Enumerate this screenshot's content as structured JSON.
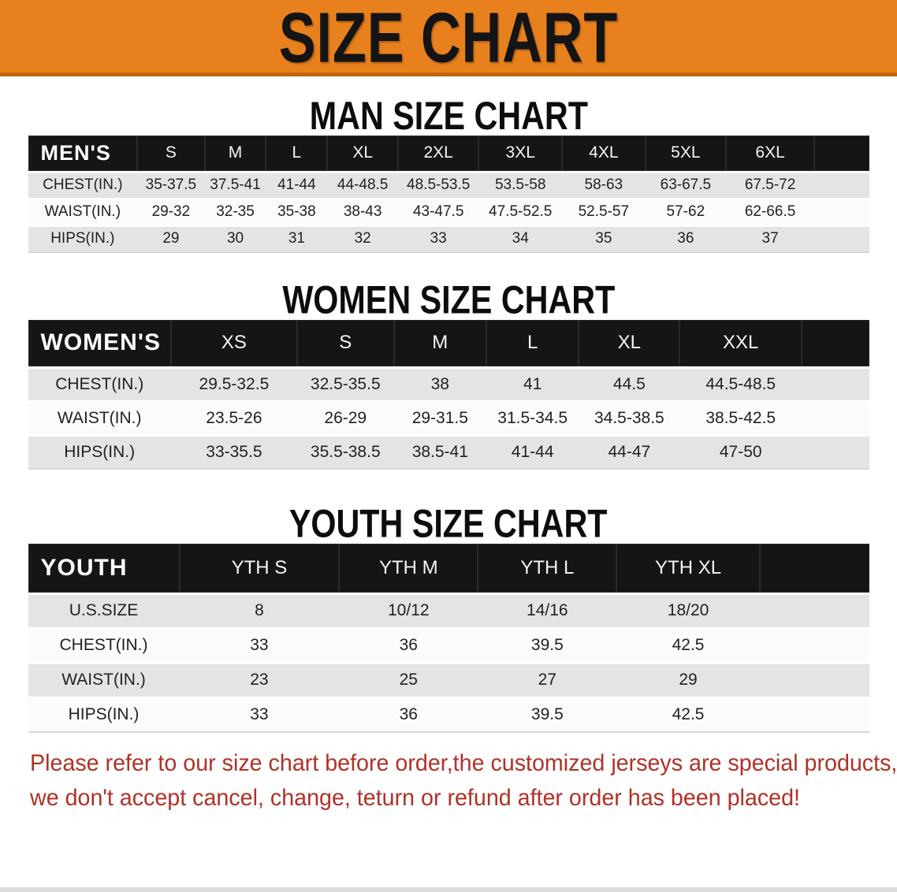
{
  "banner": {
    "title": "SIZE CHART"
  },
  "colors": {
    "banner_bg": "#E8811D",
    "banner_edge": "#C2660E",
    "header_bar": "#151515",
    "row_gray": "#E4E4E4",
    "row_white": "#FBFBFB",
    "disclaimer_red": "#B03126"
  },
  "sections": [
    {
      "heading": "MAN SIZE CHART",
      "header": [
        "MEN'S",
        "S",
        "M",
        "L",
        "XL",
        "2XL",
        "3XL",
        "4XL",
        "5XL",
        "6XL"
      ],
      "rows": [
        {
          "label": "CHEST(IN.)",
          "values": [
            "35-37.5",
            "37.5-41",
            "41-44",
            "44-48.5",
            "48.5-53.5",
            "53.5-58",
            "58-63",
            "63-67.5",
            "67.5-72"
          ]
        },
        {
          "label": "WAIST(IN.)",
          "values": [
            "29-32",
            "32-35",
            "35-38",
            "38-43",
            "43-47.5",
            "47.5-52.5",
            "52.5-57",
            "57-62",
            "62-66.5"
          ]
        },
        {
          "label": "HIPS(IN.)",
          "values": [
            "29",
            "30",
            "31",
            "32",
            "33",
            "34",
            "35",
            "36",
            "37"
          ]
        }
      ]
    },
    {
      "heading": "WOMEN SIZE CHART",
      "header": [
        "WOMEN'S",
        "XS",
        "S",
        "M",
        "L",
        "XL",
        "XXL"
      ],
      "rows": [
        {
          "label": "CHEST(IN.)",
          "values": [
            "29.5-32.5",
            "32.5-35.5",
            "38",
            "41",
            "44.5",
            "44.5-48.5"
          ]
        },
        {
          "label": "WAIST(IN.)",
          "values": [
            "23.5-26",
            "26-29",
            "29-31.5",
            "31.5-34.5",
            "34.5-38.5",
            "38.5-42.5"
          ]
        },
        {
          "label": "HIPS(IN.)",
          "values": [
            "33-35.5",
            "35.5-38.5",
            "38.5-41",
            "41-44",
            "44-47",
            "47-50"
          ]
        }
      ]
    },
    {
      "heading": "YOUTH SIZE CHART",
      "header": [
        "YOUTH",
        "YTH S",
        "YTH M",
        "YTH L",
        "YTH XL"
      ],
      "rows": [
        {
          "label": "U.S.SIZE",
          "values": [
            "8",
            "10/12",
            "14/16",
            "18/20"
          ]
        },
        {
          "label": "CHEST(IN.)",
          "values": [
            "33",
            "36",
            "39.5",
            "42.5"
          ]
        },
        {
          "label": "WAIST(IN.)",
          "values": [
            "23",
            "25",
            "27",
            "29"
          ]
        },
        {
          "label": "HIPS(IN.)",
          "values": [
            "33",
            "36",
            "39.5",
            "42.5"
          ]
        }
      ]
    }
  ],
  "disclaimer": {
    "line1": "Please refer to our size chart before order,the customized jerseys are special products,",
    "line2": "we don't accept cancel, change, teturn or refund after order has been placed!"
  }
}
